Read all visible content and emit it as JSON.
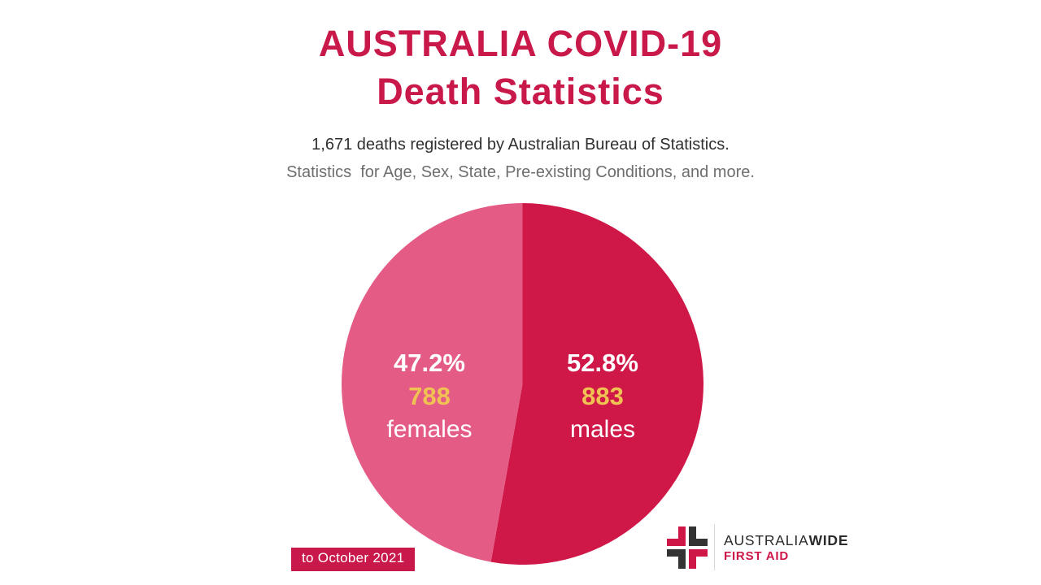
{
  "title": {
    "line1": "AUSTRALIA COVID-19",
    "line2": "Death Statistics"
  },
  "subtitle": {
    "line1": "1,671 deaths registered by Australian Bureau of Statistics.",
    "line2": "Statistics  for Age, Sex, State, Pre-existing Conditions, and more."
  },
  "chart_data": {
    "type": "pie",
    "title": "Australia COVID-19 Death Statistics",
    "total_deaths": 1671,
    "start_angle_deg": 0,
    "direction": "clockwise",
    "slices": [
      {
        "label": "males",
        "value": 883,
        "percent": "52.8%",
        "color": "#D01848"
      },
      {
        "label": "females",
        "value": 788,
        "percent": "47.2%",
        "color": "#E45C85"
      }
    ],
    "value_text_color": "#F0C153",
    "label_text_color": "#FFFFFF"
  },
  "badge": {
    "text": "to October 2021",
    "bg": "#C9194B"
  },
  "logo": {
    "brand_regular": "AUSTRALIA",
    "brand_bold": "WIDE",
    "tagline": "FIRST AID",
    "colors": {
      "crimson": "#CE1747",
      "dark": "#333333"
    }
  },
  "colors": {
    "title": "#C9184A",
    "subtitle_primary": "#303030",
    "subtitle_secondary": "#6E6E6E",
    "background": "#FFFFFF"
  }
}
